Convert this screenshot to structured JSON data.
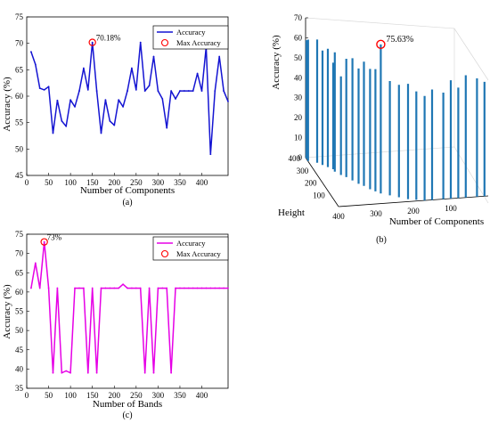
{
  "colors": {
    "a_line": "#1414d2",
    "b_bar": "#1f77b4",
    "c_line": "#e600e6",
    "max_marker": "#ff0000"
  },
  "chart_data": [
    {
      "id": "a",
      "type": "line",
      "caption": "(a)",
      "xlabel": "Number of Components",
      "ylabel": "Accuracy (%)",
      "xlim": [
        0,
        460
      ],
      "ylim": [
        45,
        75
      ],
      "xticks": [
        0,
        50,
        100,
        150,
        200,
        250,
        300,
        350,
        400
      ],
      "yticks": [
        45,
        50,
        55,
        60,
        65,
        70,
        75
      ],
      "grid": false,
      "legend": {
        "position": "top-right",
        "entries": [
          "Accuracy",
          "Max Accuracy"
        ]
      },
      "series": [
        {
          "name": "Accuracy",
          "x": [
            10,
            20,
            30,
            40,
            50,
            60,
            70,
            80,
            90,
            100,
            110,
            120,
            130,
            140,
            150,
            160,
            170,
            180,
            190,
            200,
            210,
            220,
            230,
            240,
            250,
            260,
            270,
            280,
            290,
            300,
            310,
            320,
            330,
            340,
            350,
            360,
            370,
            380,
            390,
            400,
            410,
            420,
            430,
            440,
            450,
            460
          ],
          "y": [
            68.4,
            66.0,
            61.5,
            61.2,
            61.8,
            53.0,
            59.2,
            55.3,
            54.3,
            59.3,
            58.0,
            61.0,
            65.3,
            61.2,
            70.18,
            61.0,
            53.0,
            59.3,
            55.3,
            54.5,
            59.3,
            58.0,
            61.0,
            65.3,
            61.2,
            70.18,
            61.0,
            62.0,
            67.5,
            61.0,
            59.5,
            54.0,
            61.0,
            59.5,
            61.0,
            61.0,
            61.0,
            61.0,
            64.3,
            61.0,
            69.3,
            49.0,
            61.0,
            67.5,
            61.0,
            59.0
          ]
        }
      ],
      "max_point": {
        "x": 150,
        "y": 70.18,
        "label": "70.18%"
      }
    },
    {
      "id": "b",
      "type": "bar",
      "subtype": "3d-stem",
      "caption": "(b)",
      "xlabel": "Number of Components",
      "ylabel": "Accuracy (%)",
      "zlabel": "Height",
      "components_ticks": [
        100,
        200,
        300,
        400
      ],
      "height_ticks": [
        100,
        200,
        300,
        400
      ],
      "accuracy_ticks": [
        0,
        10,
        20,
        30,
        40,
        50,
        60,
        70
      ],
      "accuracy_lim": [
        0,
        70
      ],
      "stems": [
        {
          "component": 400,
          "height": 400,
          "accuracy": 60.0
        },
        {
          "component": 400,
          "height": 380,
          "accuracy": 61.5
        },
        {
          "component": 380,
          "height": 360,
          "accuracy": 62.5
        },
        {
          "component": 370,
          "height": 340,
          "accuracy": 58.0
        },
        {
          "component": 360,
          "height": 320,
          "accuracy": 60.0
        },
        {
          "component": 350,
          "height": 300,
          "accuracy": 54.0
        },
        {
          "component": 350,
          "height": 280,
          "accuracy": 60.5
        },
        {
          "component": 340,
          "height": 250,
          "accuracy": 50.0
        },
        {
          "component": 330,
          "height": 230,
          "accuracy": 60.0
        },
        {
          "component": 320,
          "height": 200,
          "accuracy": 62.0
        },
        {
          "component": 310,
          "height": 170,
          "accuracy": 58.5
        },
        {
          "component": 300,
          "height": 150,
          "accuracy": 63.0
        },
        {
          "component": 290,
          "height": 120,
          "accuracy": 61.0
        },
        {
          "component": 280,
          "height": 100,
          "accuracy": 62.0
        },
        {
          "component": 270,
          "height": 80,
          "accuracy": 75.63
        },
        {
          "component": 250,
          "height": 60,
          "accuracy": 58.0
        },
        {
          "component": 230,
          "height": 40,
          "accuracy": 57.0
        },
        {
          "component": 210,
          "height": 20,
          "accuracy": 58.5
        },
        {
          "component": 190,
          "height": 10,
          "accuracy": 55.0
        },
        {
          "component": 170,
          "height": 0,
          "accuracy": 53.0
        },
        {
          "component": 150,
          "height": 0,
          "accuracy": 56.0
        },
        {
          "component": 120,
          "height": 0,
          "accuracy": 54.0
        },
        {
          "component": 100,
          "height": 0,
          "accuracy": 60.0
        },
        {
          "component": 80,
          "height": 0,
          "accuracy": 56.0
        },
        {
          "component": 60,
          "height": 0,
          "accuracy": 62.0
        },
        {
          "component": 30,
          "height": 0,
          "accuracy": 60.0
        },
        {
          "component": 10,
          "height": 0,
          "accuracy": 58.0
        }
      ],
      "max_point_label": "75.63%"
    },
    {
      "id": "c",
      "type": "line",
      "caption": "(c)",
      "xlabel": "Number of Bands",
      "ylabel": "Accuracy (%)",
      "xlim": [
        0,
        460
      ],
      "ylim": [
        35,
        75
      ],
      "xticks": [
        0,
        50,
        100,
        150,
        200,
        250,
        300,
        350,
        400
      ],
      "yticks": [
        35,
        40,
        45,
        50,
        55,
        60,
        65,
        70,
        75
      ],
      "grid": false,
      "legend": {
        "position": "top-right",
        "entries": [
          "Accuracy",
          "Max Accuracy"
        ]
      },
      "series": [
        {
          "name": "Accuracy",
          "x": [
            10,
            20,
            30,
            40,
            50,
            60,
            70,
            80,
            90,
            100,
            110,
            120,
            130,
            140,
            150,
            160,
            170,
            180,
            190,
            200,
            210,
            220,
            230,
            240,
            250,
            260,
            270,
            280,
            290,
            300,
            310,
            320,
            330,
            340,
            350,
            360,
            370,
            380,
            390,
            400,
            410,
            420,
            430,
            440,
            450,
            460
          ],
          "y": [
            61.0,
            67.5,
            61.0,
            73.0,
            61.0,
            39.0,
            61.0,
            39.0,
            39.5,
            39.0,
            61.0,
            61.0,
            61.0,
            39.0,
            61.0,
            39.0,
            61.0,
            61.0,
            61.0,
            61.0,
            61.0,
            62.0,
            61.0,
            61.0,
            61.0,
            61.0,
            39.0,
            61.0,
            39.0,
            61.0,
            61.0,
            61.0,
            39.0,
            61.0,
            61.0,
            61.0,
            61.0,
            61.0,
            61.0,
            61.0,
            61.0,
            61.0,
            61.0,
            61.0,
            61.0,
            61.0
          ]
        }
      ],
      "max_point": {
        "x": 40,
        "y": 73.0,
        "label": "73%"
      }
    }
  ]
}
